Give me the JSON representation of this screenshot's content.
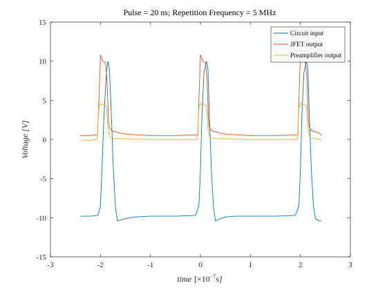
{
  "chart_data": {
    "type": "line",
    "title": "Pulse = 20 ns; Repetition Frequency = 5 MHz",
    "xlabel": "time",
    "xlabel_unit": "[×10",
    "xlabel_exp": "−7",
    "xlabel_unit_end": "s]",
    "ylabel": "Voltage [V]",
    "xlim": [
      -3,
      3
    ],
    "ylim": [
      -15,
      15
    ],
    "xticks": [
      -3,
      -2,
      -1,
      0,
      1,
      2,
      3
    ],
    "yticks": [
      -15,
      -10,
      -5,
      0,
      5,
      10,
      15
    ],
    "grid": false,
    "legend_position": "top-right",
    "series": [
      {
        "name": "Circuit input",
        "color": "#0072BD",
        "x": [
          -2.4,
          -2.2,
          -2.05,
          -2.0,
          -1.97,
          -1.93,
          -1.88,
          -1.85,
          -1.82,
          -1.78,
          -1.74,
          -1.7,
          -1.66,
          -1.6,
          -1.5,
          -1.3,
          -1.0,
          -0.5,
          -0.1,
          -0.03,
          0.0,
          0.03,
          0.07,
          0.12,
          0.15,
          0.18,
          0.22,
          0.26,
          0.3,
          0.34,
          0.4,
          0.5,
          0.7,
          1.0,
          1.5,
          1.9,
          1.97,
          2.0,
          2.03,
          2.07,
          2.12,
          2.15,
          2.18,
          2.22,
          2.26,
          2.3,
          2.34,
          2.38,
          2.42
        ],
        "y": [
          -9.8,
          -9.8,
          -9.7,
          -8.5,
          -4.0,
          3.0,
          8.5,
          10.0,
          9.0,
          3.0,
          -4.0,
          -8.5,
          -10.4,
          -10.3,
          -10.1,
          -9.9,
          -9.8,
          -9.8,
          -9.7,
          -8.5,
          -4.0,
          3.0,
          8.5,
          10.0,
          9.0,
          3.0,
          -4.0,
          -8.5,
          -10.4,
          -10.3,
          -10.1,
          -9.9,
          -9.8,
          -9.8,
          -9.8,
          -9.7,
          -8.5,
          -4.0,
          3.0,
          8.5,
          10.0,
          9.0,
          3.0,
          -4.0,
          -8.5,
          -10.1,
          -10.3,
          -10.4,
          -10.4
        ]
      },
      {
        "name": "JFET output",
        "color": "#D95319",
        "x": [
          -2.4,
          -2.2,
          -2.06,
          -2.03,
          -2.0,
          -1.98,
          -1.95,
          -1.9,
          -1.87,
          -1.84,
          -1.82,
          -1.78,
          -1.74,
          -1.7,
          -1.6,
          -1.5,
          -1.3,
          -1.0,
          -0.5,
          -0.05,
          -0.03,
          0.0,
          0.02,
          0.05,
          0.1,
          0.13,
          0.16,
          0.18,
          0.22,
          0.26,
          0.3,
          0.4,
          0.5,
          0.7,
          1.0,
          1.5,
          1.95,
          1.97,
          2.0,
          2.02,
          2.05,
          2.1,
          2.13,
          2.16,
          2.18,
          2.22,
          2.26,
          2.3,
          2.38,
          2.42
        ],
        "y": [
          0.5,
          0.5,
          0.6,
          5.0,
          10.8,
          10.5,
          10.0,
          9.8,
          8.0,
          2.5,
          1.5,
          1.2,
          1.0,
          1.0,
          0.8,
          0.7,
          0.6,
          0.5,
          0.5,
          0.6,
          5.0,
          10.8,
          10.5,
          10.0,
          9.8,
          8.0,
          2.5,
          1.5,
          1.2,
          1.0,
          1.0,
          0.8,
          0.7,
          0.6,
          0.5,
          0.5,
          0.6,
          5.0,
          10.8,
          10.5,
          10.0,
          9.8,
          8.0,
          2.5,
          1.5,
          1.2,
          1.0,
          1.0,
          0.8,
          0.5
        ]
      },
      {
        "name": "Preamplifier output",
        "color": "#EDB120",
        "x": [
          -2.4,
          -2.2,
          -2.07,
          -2.03,
          -2.0,
          -1.96,
          -1.92,
          -1.88,
          -1.85,
          -1.82,
          -1.78,
          -1.7,
          -1.5,
          -1.0,
          -0.5,
          -0.06,
          -0.03,
          0.0,
          0.04,
          0.08,
          0.12,
          0.15,
          0.18,
          0.22,
          0.3,
          0.5,
          1.0,
          1.5,
          1.94,
          1.97,
          2.0,
          2.04,
          2.08,
          2.12,
          2.15,
          2.18,
          2.22,
          2.3,
          2.42
        ],
        "y": [
          -0.1,
          -0.1,
          0.0,
          4.0,
          4.6,
          4.4,
          4.5,
          4.3,
          1.5,
          0.4,
          0.2,
          0.1,
          0.1,
          0.0,
          0.0,
          0.0,
          4.0,
          4.6,
          4.4,
          4.5,
          4.3,
          1.5,
          0.4,
          0.2,
          0.1,
          0.1,
          0.0,
          0.0,
          0.0,
          4.0,
          4.6,
          4.4,
          4.5,
          4.3,
          1.5,
          0.4,
          0.2,
          0.1,
          0.0
        ]
      }
    ]
  }
}
